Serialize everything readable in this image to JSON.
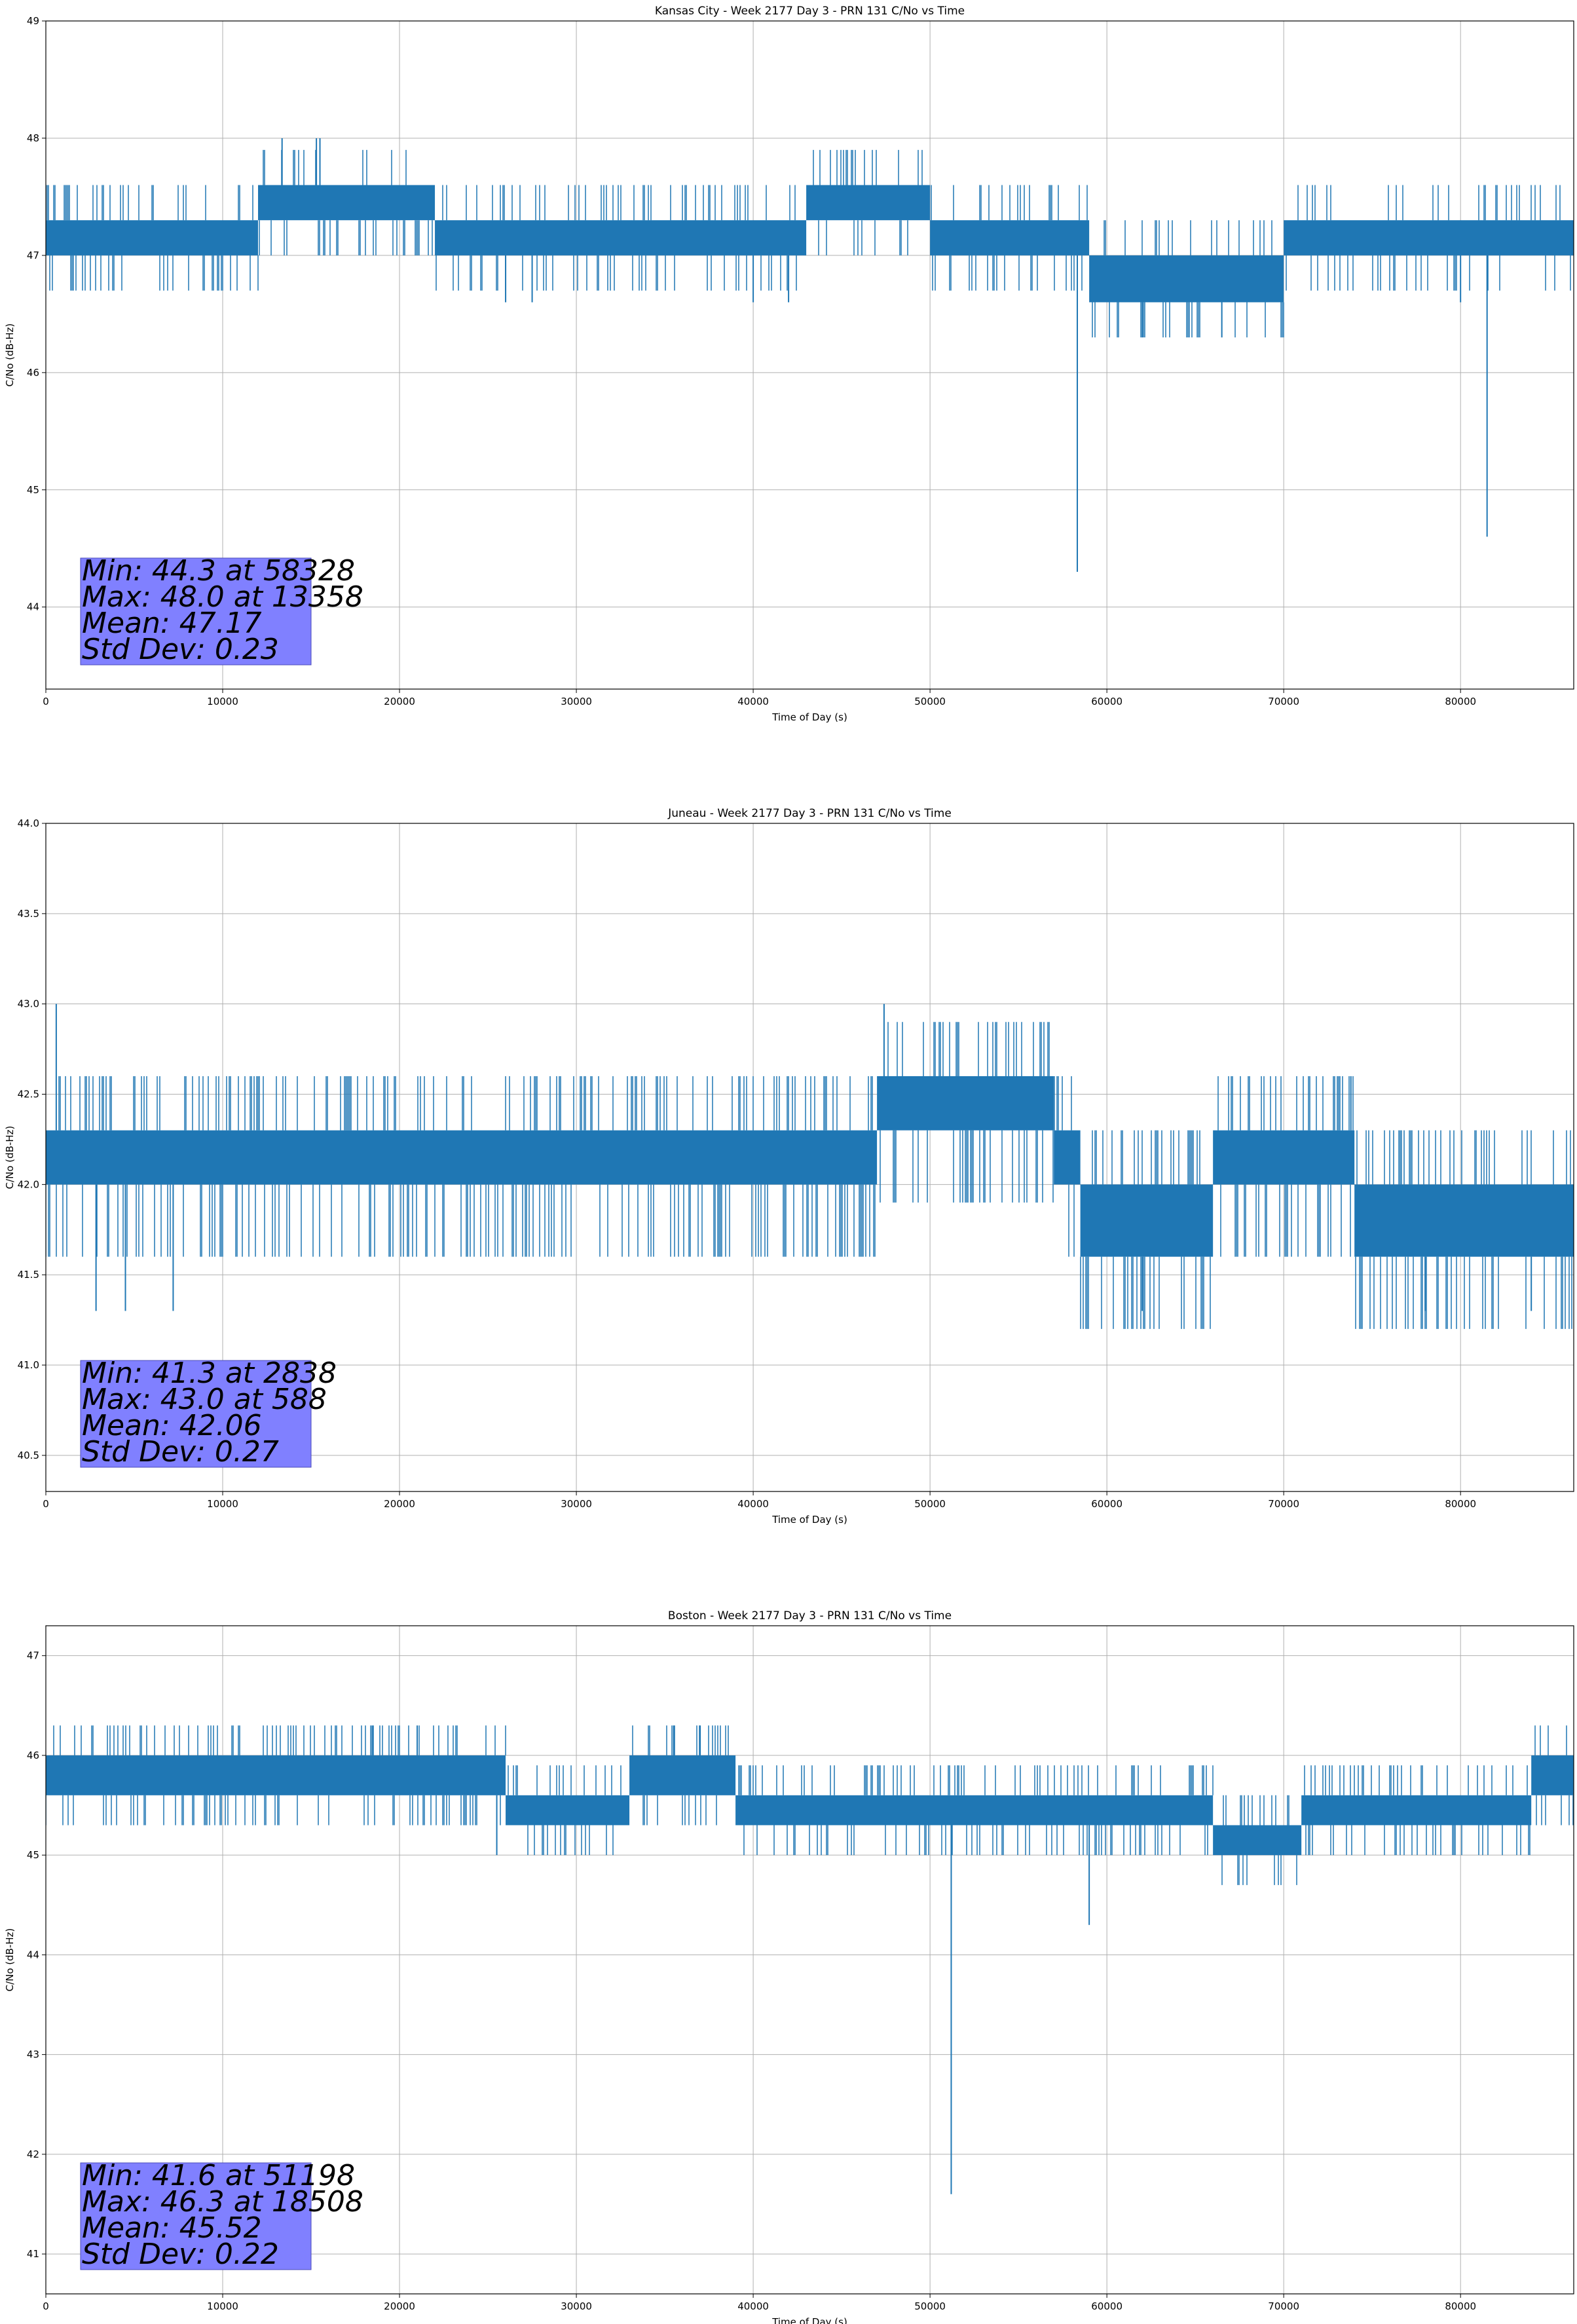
{
  "chart_data": [
    {
      "type": "line",
      "title": "Kansas City - Week 2177 Day 3 - PRN 131 C/No vs Time",
      "xlabel": "Time of Day (s)",
      "ylabel": "C/No (dB-Hz)",
      "xlim": [
        0,
        86400
      ],
      "ylim": [
        43.3,
        49.0
      ],
      "xticks": [
        0,
        10000,
        20000,
        30000,
        40000,
        50000,
        60000,
        70000,
        80000
      ],
      "yticks": [
        44,
        45,
        46,
        47,
        48,
        49
      ],
      "ytick_decimals": 0,
      "grid": true,
      "color": "#1f77b4",
      "stats": [
        "Min: 44.3 at 58328",
        "Max: 48.0 at 13358",
        "Mean: 47.17",
        "Std Dev: 0.23"
      ],
      "bands": [
        {
          "x": [
            0,
            12000
          ],
          "lo": 47.0,
          "hi": 47.3
        },
        {
          "x": [
            12000,
            22000
          ],
          "lo": 47.3,
          "hi": 47.6
        },
        {
          "x": [
            22000,
            43000
          ],
          "lo": 47.0,
          "hi": 47.3
        },
        {
          "x": [
            43000,
            50000
          ],
          "lo": 47.3,
          "hi": 47.6
        },
        {
          "x": [
            50000,
            59000
          ],
          "lo": 47.0,
          "hi": 47.3
        },
        {
          "x": [
            59000,
            70000
          ],
          "lo": 46.6,
          "hi": 47.0
        },
        {
          "x": [
            70000,
            86400
          ],
          "lo": 47.0,
          "hi": 47.3
        }
      ],
      "spikes": [
        {
          "x": 58328,
          "y": 44.3
        },
        {
          "x": 81500,
          "y": 44.6
        },
        {
          "x": 13358,
          "y": 48.0
        },
        {
          "x": 15300,
          "y": 48.0
        },
        {
          "x": 15500,
          "y": 48.0
        },
        {
          "x": 26000,
          "y": 46.6
        },
        {
          "x": 27500,
          "y": 46.6
        },
        {
          "x": 40000,
          "y": 46.6
        },
        {
          "x": 42000,
          "y": 46.6
        },
        {
          "x": 62000,
          "y": 46.3
        },
        {
          "x": 66500,
          "y": 46.3
        },
        {
          "x": 80000,
          "y": 46.6
        }
      ],
      "noise": {
        "up": 0.3,
        "down": 0.3,
        "density": 0.3
      }
    },
    {
      "type": "line",
      "title": "Juneau - Week 2177 Day 3 - PRN 131 C/No vs Time",
      "xlabel": "Time of Day (s)",
      "ylabel": "C/No (dB-Hz)",
      "xlim": [
        0,
        86400
      ],
      "ylim": [
        40.3,
        44.0
      ],
      "xticks": [
        0,
        10000,
        20000,
        30000,
        40000,
        50000,
        60000,
        70000,
        80000
      ],
      "yticks": [
        40.5,
        41.0,
        41.5,
        42.0,
        42.5,
        43.0,
        43.5,
        44.0
      ],
      "ytick_decimals": 1,
      "grid": true,
      "color": "#1f77b4",
      "stats": [
        "Min: 41.3 at 2838",
        "Max: 43.0 at 588",
        "Mean: 42.06",
        "Std Dev: 0.27"
      ],
      "bands": [
        {
          "x": [
            0,
            47000
          ],
          "lo": 42.0,
          "hi": 42.3
        },
        {
          "x": [
            47000,
            57000
          ],
          "lo": 42.3,
          "hi": 42.6
        },
        {
          "x": [
            57000,
            58500
          ],
          "lo": 42.0,
          "hi": 42.3
        },
        {
          "x": [
            58500,
            66000
          ],
          "lo": 41.6,
          "hi": 42.0
        },
        {
          "x": [
            66000,
            74000
          ],
          "lo": 42.0,
          "hi": 42.3
        },
        {
          "x": [
            74000,
            86400
          ],
          "lo": 41.6,
          "hi": 42.0
        }
      ],
      "spikes": [
        {
          "x": 588,
          "y": 43.0
        },
        {
          "x": 47400,
          "y": 43.0
        },
        {
          "x": 2838,
          "y": 41.3
        },
        {
          "x": 4500,
          "y": 41.3
        },
        {
          "x": 7200,
          "y": 41.3
        },
        {
          "x": 62000,
          "y": 41.3
        },
        {
          "x": 78000,
          "y": 41.3
        },
        {
          "x": 84000,
          "y": 41.3
        },
        {
          "x": 73800,
          "y": 42.6
        }
      ],
      "noise": {
        "up": 0.3,
        "down": 0.4,
        "density": 0.45
      }
    },
    {
      "type": "line",
      "title": "Boston - Week 2177 Day 3 - PRN 131 C/No vs Time",
      "xlabel": "Time of Day (s)",
      "ylabel": "C/No (dB-Hz)",
      "xlim": [
        0,
        86400
      ],
      "ylim": [
        40.6,
        47.3
      ],
      "xticks": [
        0,
        10000,
        20000,
        30000,
        40000,
        50000,
        60000,
        70000,
        80000
      ],
      "yticks": [
        41,
        42,
        43,
        44,
        45,
        46,
        47
      ],
      "ytick_decimals": 0,
      "grid": true,
      "color": "#1f77b4",
      "stats": [
        "Min: 41.6 at 51198",
        "Max: 46.3 at 18508",
        "Mean: 45.52",
        "Std Dev: 0.22"
      ],
      "bands": [
        {
          "x": [
            0,
            26000
          ],
          "lo": 45.6,
          "hi": 46.0
        },
        {
          "x": [
            26000,
            33000
          ],
          "lo": 45.3,
          "hi": 45.6
        },
        {
          "x": [
            33000,
            39000
          ],
          "lo": 45.6,
          "hi": 46.0
        },
        {
          "x": [
            39000,
            66000
          ],
          "lo": 45.3,
          "hi": 45.6
        },
        {
          "x": [
            66000,
            71000
          ],
          "lo": 45.0,
          "hi": 45.3
        },
        {
          "x": [
            71000,
            84000
          ],
          "lo": 45.3,
          "hi": 45.6
        },
        {
          "x": [
            84000,
            86400
          ],
          "lo": 45.6,
          "hi": 46.0
        }
      ],
      "spikes": [
        {
          "x": 51198,
          "y": 41.6
        },
        {
          "x": 59000,
          "y": 44.3
        },
        {
          "x": 18508,
          "y": 46.3
        },
        {
          "x": 21000,
          "y": 46.3
        },
        {
          "x": 35500,
          "y": 46.3
        },
        {
          "x": 37000,
          "y": 46.3
        },
        {
          "x": 25500,
          "y": 45.0
        }
      ],
      "noise": {
        "up": 0.3,
        "down": 0.3,
        "density": 0.35
      }
    }
  ]
}
